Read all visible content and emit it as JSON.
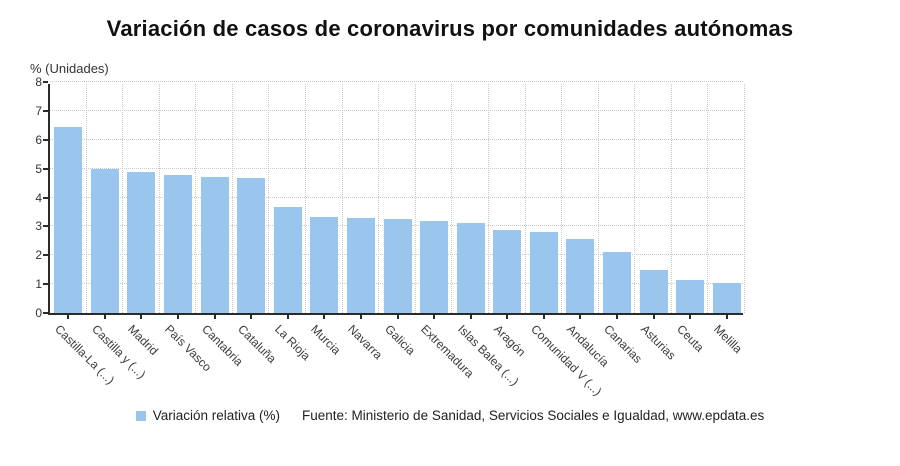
{
  "chart_data": {
    "type": "bar",
    "title": "Variación de casos de coronavirus por comunidades autónomas",
    "ylabel": "% (Unidades)",
    "xlabel": "",
    "ylim": [
      0,
      8
    ],
    "yticks": [
      0,
      1,
      2,
      3,
      4,
      5,
      6,
      7,
      8
    ],
    "grid": true,
    "bar_color": "#9ac5ec",
    "categories": [
      "Castilla-La (...)",
      "Castilla y (...)",
      "Madrid",
      "País Vasco",
      "Cantabria",
      "Cataluña",
      "La Rioja",
      "Murcia",
      "Navarra",
      "Galicia",
      "Extremadura",
      "Islas Balea (...)",
      "Aragón",
      "Comunidad V (...)",
      "Andalucía",
      "Canarias",
      "Asturias",
      "Ceuta",
      "Melilla"
    ],
    "series": [
      {
        "name": "Variación relativa (%)",
        "values": [
          6.44,
          5.0,
          4.9,
          4.77,
          4.72,
          4.67,
          3.66,
          3.33,
          3.3,
          3.25,
          3.2,
          3.13,
          2.88,
          2.8,
          2.58,
          2.1,
          1.48,
          1.15,
          1.05
        ]
      }
    ],
    "legend_position": "bottom"
  },
  "legend": {
    "label": "Variación relativa (%)",
    "color": "#9ac5ec"
  },
  "footer": {
    "source": "Fuente: Ministerio de Sanidad, Servicios Sociales e Igualdad, www.epdata.es"
  }
}
